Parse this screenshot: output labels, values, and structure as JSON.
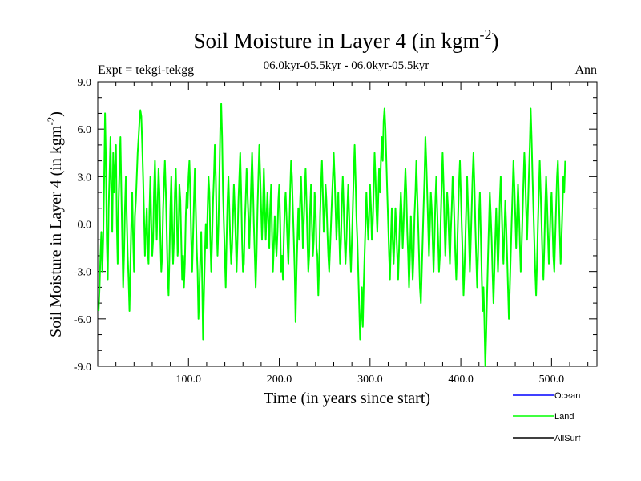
{
  "chart_data": {
    "type": "line",
    "title": "Soil Moisture in Layer 4 (in kgm",
    "title_sup": "-2",
    "title_close": ")",
    "left_label": "Expt = tekgi-tekgg",
    "center_label": "06.0kyr-05.5kyr - 06.0kyr-05.5kyr",
    "right_label": "Ann",
    "xlabel": "Time (in years since start)",
    "ylabel": "Soil Moisture in Layer 4 (in kgm",
    "ylabel_sup": "-2",
    "ylabel_close": ")",
    "xlim": [
      0,
      550
    ],
    "ylim": [
      -9,
      9
    ],
    "x_ticks": [
      {
        "value": 100,
        "label": "100.0"
      },
      {
        "value": 200,
        "label": "200.0"
      },
      {
        "value": 300,
        "label": "300.0"
      },
      {
        "value": 400,
        "label": "400.0"
      },
      {
        "value": 500,
        "label": "500.0"
      }
    ],
    "y_ticks": [
      {
        "value": 9,
        "label": "9.0"
      },
      {
        "value": 6,
        "label": "6.0"
      },
      {
        "value": 3,
        "label": "3.0"
      },
      {
        "value": 0,
        "label": "0.0"
      },
      {
        "value": -3,
        "label": "-3.0"
      },
      {
        "value": -6,
        "label": "-6.0"
      },
      {
        "value": -9,
        "label": "-9.0"
      }
    ],
    "zero_line": true,
    "legend": [
      {
        "name": "Ocean",
        "color": "#0000ff"
      },
      {
        "name": "Land",
        "color": "#00ff00"
      },
      {
        "name": "AllSurf",
        "color": "#000000"
      }
    ],
    "series": [
      {
        "name": "Land",
        "color": "#00ff00",
        "x_start": 1,
        "x_step": 1,
        "values": [
          -5.5,
          -4.0,
          -2.0,
          -0.5,
          -3.0,
          -1.0,
          2.5,
          7.0,
          4.0,
          -1.0,
          -3.5,
          1.0,
          3.0,
          5.5,
          2.0,
          -0.5,
          4.5,
          2.0,
          3.5,
          5.0,
          0.0,
          -2.5,
          1.5,
          3.5,
          5.5,
          2.0,
          -1.0,
          -4.0,
          -2.0,
          1.0,
          3.0,
          0.5,
          -2.0,
          -3.5,
          -5.5,
          -2.5,
          0.0,
          2.0,
          -1.0,
          -3.0,
          0.5,
          1.5,
          3.0,
          4.5,
          5.5,
          6.5,
          7.2,
          6.8,
          5.0,
          3.0,
          0.5,
          -2.0,
          -0.5,
          1.0,
          -1.5,
          -2.5,
          1.0,
          3.0,
          0.0,
          -2.0,
          -1.0,
          2.0,
          4.0,
          1.5,
          -1.0,
          1.5,
          3.5,
          2.0,
          -1.0,
          -3.0,
          -2.0,
          1.0,
          2.5,
          4.0,
          2.0,
          -0.5,
          -3.0,
          -4.5,
          -2.0,
          1.0,
          3.0,
          0.0,
          -2.5,
          -1.0,
          2.0,
          3.5,
          1.0,
          -2.0,
          -1.0,
          2.5,
          1.5,
          -1.0,
          -3.5,
          -2.0,
          -4.0,
          -2.5,
          0.5,
          2.0,
          1.0,
          3.0,
          4.0,
          2.0,
          -1.0,
          -3.0,
          -1.0,
          1.5,
          3.5,
          1.0,
          -1.5,
          -3.0,
          -6.0,
          -4.0,
          -2.0,
          -0.5,
          -3.5,
          -7.3,
          -4.5,
          -2.0,
          0.0,
          -1.5,
          1.0,
          3.0,
          2.0,
          -1.0,
          -3.0,
          -1.0,
          1.5,
          3.0,
          5.0,
          3.0,
          0.0,
          -2.0,
          0.0,
          3.0,
          6.0,
          7.6,
          5.5,
          2.0,
          0.0,
          -2.0,
          -4.0,
          -1.0,
          1.5,
          3.0,
          1.0,
          -1.0,
          -2.5,
          -1.5,
          0.5,
          2.5,
          1.0,
          -1.0,
          -3.0,
          -1.0,
          1.5,
          3.0,
          4.5,
          2.0,
          -1.0,
          -3.0,
          -2.5,
          0.0,
          1.5,
          3.5,
          2.0,
          0.5,
          -1.5,
          0.5,
          2.5,
          4.5,
          2.5,
          0.0,
          -2.0,
          -4.0,
          -2.0,
          1.0,
          3.0,
          5.0,
          3.0,
          1.0,
          -1.0,
          1.0,
          3.5,
          1.5,
          -1.0,
          0.5,
          2.0,
          0.0,
          -1.5,
          1.0,
          2.5,
          -0.5,
          -3.0,
          -1.5,
          0.5,
          -1.0,
          -2.0,
          -0.5,
          1.5,
          2.5,
          0.0,
          -3.0,
          -2.0,
          -3.5,
          -1.0,
          1.0,
          2.0,
          0.5,
          -1.0,
          -2.5,
          -0.5,
          2.0,
          4.0,
          3.0,
          1.0,
          -1.0,
          -3.0,
          -6.2,
          -3.0,
          -1.0,
          1.0,
          -1.0,
          1.5,
          3.0,
          1.0,
          -1.5,
          0.0,
          2.0,
          3.5,
          1.5,
          -1.0,
          -3.0,
          -2.0,
          1.0,
          2.5,
          0.0,
          -2.0,
          -1.0,
          2.0,
          1.0,
          -1.5,
          -2.0,
          -4.5,
          -2.5,
          0.5,
          2.5,
          4.0,
          2.0,
          -0.5,
          0.5,
          2.5,
          1.5,
          -0.5,
          -2.0,
          -3.0,
          -1.5,
          0.0,
          1.5,
          3.0,
          4.5,
          3.0,
          1.0,
          -1.0,
          0.5,
          2.0,
          -0.5,
          -2.5,
          -1.0,
          1.5,
          3.0,
          1.0,
          -1.0,
          -2.5,
          -1.0,
          1.0,
          2.5,
          0.5,
          -1.5,
          -3.0,
          -1.0,
          1.0,
          3.0,
          5.0,
          3.0,
          0.5,
          -1.0,
          -3.0,
          -5.0,
          -7.3,
          -6.0,
          -4.0,
          -6.5,
          -4.0,
          -2.0,
          0.0,
          2.0,
          0.5,
          -1.0,
          0.5,
          2.5,
          1.0,
          -1.0,
          0.0,
          2.0,
          4.5,
          3.0,
          1.0,
          -0.5,
          1.5,
          3.5,
          2.0,
          4.0,
          5.5,
          4.0,
          6.5,
          7.3,
          6.0,
          4.0,
          2.0,
          0.0,
          -2.0,
          -3.5,
          -1.0,
          1.0,
          -1.0,
          -2.5,
          -1.0,
          1.0,
          -0.5,
          -2.0,
          -3.5,
          -1.5,
          0.5,
          2.0,
          0.5,
          -1.5,
          0.0,
          2.0,
          3.5,
          2.0,
          -0.5,
          -2.0,
          -4.0,
          -2.0,
          0.5,
          -1.5,
          -3.5,
          -2.0,
          0.5,
          2.0,
          4.0,
          2.0,
          0.0,
          -2.0,
          -4.0,
          -5.0,
          -3.0,
          -1.0,
          1.0,
          3.0,
          5.5,
          4.0,
          2.0,
          0.0,
          -2.0,
          0.0,
          2.0,
          1.0,
          -1.0,
          -3.0,
          -1.0,
          1.5,
          3.0,
          1.0,
          -1.0,
          -3.0,
          -2.0,
          0.5,
          2.5,
          4.5,
          2.5,
          0.0,
          -2.0,
          0.0,
          2.0,
          1.0,
          -1.0,
          -2.5,
          -0.5,
          1.0,
          3.0,
          2.0,
          0.0,
          -2.0,
          -3.5,
          -1.5,
          0.5,
          2.5,
          4.0,
          2.0,
          0.0,
          -2.0,
          -4.5,
          -3.0,
          -1.0,
          1.0,
          3.0,
          1.0,
          -1.0,
          -3.0,
          -1.0,
          1.0,
          3.0,
          4.5,
          2.5,
          0.0,
          -2.0,
          -4.0,
          -2.0,
          0.5,
          2.0,
          -0.5,
          -3.0,
          -5.5,
          -4.0,
          -6.0,
          -9.0,
          -7.0,
          -4.5,
          -2.0,
          0.0,
          2.0,
          0.5,
          -1.0,
          -3.0,
          -5.0,
          -3.0,
          -1.0,
          1.0,
          -1.0,
          -3.0,
          -1.0,
          1.5,
          3.0,
          1.0,
          -1.0,
          -2.5,
          -0.5,
          1.5,
          0.0,
          -2.0,
          -4.0,
          -6.0,
          -4.0,
          -2.0,
          0.0,
          2.0,
          4.0,
          2.5,
          0.5,
          -1.5,
          0.5,
          2.5,
          1.0,
          -1.0,
          -3.0,
          -1.5,
          0.5,
          2.5,
          4.5,
          3.0,
          1.0,
          -1.0,
          1.0,
          3.0,
          5.0,
          7.3,
          5.5,
          3.0,
          1.0,
          -1.0,
          -3.0,
          -4.5,
          -2.5,
          0.0,
          2.0,
          4.0,
          2.0,
          0.0,
          -2.0,
          -3.5,
          -1.5,
          1.0,
          3.0,
          1.5,
          -0.5,
          -2.5,
          -1.0,
          1.0,
          2.0,
          0.0,
          -2.0,
          -3.0,
          -1.0,
          1.0,
          3.0,
          4.0,
          2.0,
          -0.5,
          -2.5,
          -1.0,
          1.0,
          3.0,
          2.0,
          4.0
        ]
      }
    ]
  }
}
